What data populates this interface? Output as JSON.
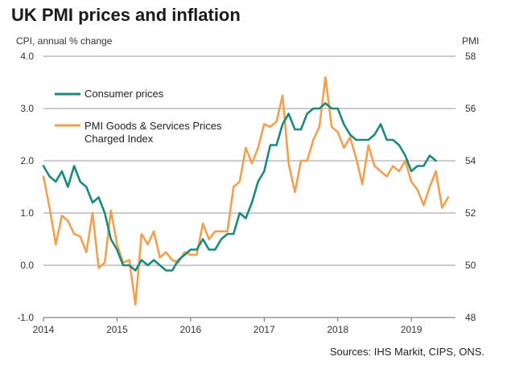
{
  "chart_data": {
    "type": "line",
    "title": "UK PMI prices and inflation",
    "ylabel_left": "CPI, annual % change",
    "ylabel_right": "PMI",
    "ylim_left": [
      -1.0,
      4.0
    ],
    "ylim_right": [
      48,
      58
    ],
    "yticks_left": [
      "4.0",
      "3.0",
      "2.0",
      "1.0",
      "0.0",
      "-1.0"
    ],
    "yticks_right": [
      "58",
      "56",
      "54",
      "52",
      "50",
      "48"
    ],
    "xlim": [
      2014.0,
      2019.6
    ],
    "xticks": [
      "2014",
      "2015",
      "2016",
      "2017",
      "2018",
      "2019"
    ],
    "grid": "horizontal",
    "legend_position": "upper-left",
    "series": [
      {
        "name": "Consumer prices",
        "axis": "left",
        "color": "#1a8a7a",
        "x": [
          2014.0,
          2014.083,
          2014.167,
          2014.25,
          2014.333,
          2014.417,
          2014.5,
          2014.583,
          2014.667,
          2014.75,
          2014.833,
          2014.917,
          2015.0,
          2015.083,
          2015.167,
          2015.25,
          2015.333,
          2015.417,
          2015.5,
          2015.583,
          2015.667,
          2015.75,
          2015.833,
          2015.917,
          2016.0,
          2016.083,
          2016.167,
          2016.25,
          2016.333,
          2016.417,
          2016.5,
          2016.583,
          2016.667,
          2016.75,
          2016.833,
          2016.917,
          2017.0,
          2017.083,
          2017.167,
          2017.25,
          2017.333,
          2017.417,
          2017.5,
          2017.583,
          2017.667,
          2017.75,
          2017.833,
          2017.917,
          2018.0,
          2018.083,
          2018.167,
          2018.25,
          2018.333,
          2018.417,
          2018.5,
          2018.583,
          2018.667,
          2018.75,
          2018.833,
          2018.917,
          2019.0,
          2019.083,
          2019.167,
          2019.25,
          2019.333
        ],
        "values": [
          1.9,
          1.7,
          1.6,
          1.8,
          1.5,
          1.9,
          1.6,
          1.5,
          1.2,
          1.3,
          1.0,
          0.5,
          0.3,
          0.0,
          0.0,
          -0.1,
          0.1,
          0.0,
          0.1,
          0.0,
          -0.1,
          -0.1,
          0.1,
          0.2,
          0.3,
          0.3,
          0.5,
          0.3,
          0.3,
          0.5,
          0.6,
          0.6,
          1.0,
          0.9,
          1.2,
          1.6,
          1.8,
          2.3,
          2.3,
          2.7,
          2.9,
          2.6,
          2.6,
          2.9,
          3.0,
          3.0,
          3.1,
          3.0,
          3.0,
          2.7,
          2.5,
          2.4,
          2.4,
          2.4,
          2.5,
          2.7,
          2.4,
          2.4,
          2.3,
          2.1,
          1.8,
          1.9,
          1.9,
          2.1,
          2.0
        ]
      },
      {
        "name": "PMI Goods & Services Prices Charged Index",
        "axis": "right",
        "color": "#f0a050",
        "x": [
          2014.0,
          2014.083,
          2014.167,
          2014.25,
          2014.333,
          2014.417,
          2014.5,
          2014.583,
          2014.667,
          2014.75,
          2014.833,
          2014.917,
          2015.0,
          2015.083,
          2015.167,
          2015.25,
          2015.333,
          2015.417,
          2015.5,
          2015.583,
          2015.667,
          2015.75,
          2015.833,
          2015.917,
          2016.0,
          2016.083,
          2016.167,
          2016.25,
          2016.333,
          2016.417,
          2016.5,
          2016.583,
          2016.667,
          2016.75,
          2016.833,
          2016.917,
          2017.0,
          2017.083,
          2017.167,
          2017.25,
          2017.333,
          2017.417,
          2017.5,
          2017.583,
          2017.667,
          2017.75,
          2017.833,
          2017.917,
          2018.0,
          2018.083,
          2018.167,
          2018.25,
          2018.333,
          2018.417,
          2018.5,
          2018.583,
          2018.667,
          2018.75,
          2018.833,
          2018.917,
          2019.0,
          2019.083,
          2019.167,
          2019.25,
          2019.333,
          2019.417,
          2019.5
        ],
        "values": [
          53.4,
          52.2,
          50.8,
          51.9,
          51.7,
          51.2,
          51.1,
          50.5,
          52.0,
          49.9,
          50.1,
          52.1,
          50.8,
          50.1,
          50.2,
          48.5,
          51.2,
          50.8,
          51.3,
          50.3,
          50.5,
          50.2,
          50.1,
          50.5,
          50.4,
          50.4,
          51.6,
          51.0,
          51.3,
          51.3,
          51.3,
          53.0,
          53.2,
          54.5,
          53.9,
          54.5,
          55.4,
          55.3,
          55.5,
          56.5,
          53.9,
          52.8,
          54.0,
          54.0,
          54.8,
          55.3,
          57.2,
          55.3,
          55.1,
          54.5,
          54.9,
          54.1,
          53.1,
          54.6,
          53.8,
          53.6,
          53.4,
          53.8,
          53.6,
          54.0,
          53.2,
          52.9,
          52.3,
          53.0,
          53.6,
          52.2,
          52.6
        ]
      }
    ]
  },
  "source_text": "Sources: IHS Markit, CIPS, ONS.",
  "legend": {
    "consumer_label": "Consumer prices",
    "pmi_label_line1": "PMI Goods & Services Prices",
    "pmi_label_line2": "Charged Index"
  }
}
